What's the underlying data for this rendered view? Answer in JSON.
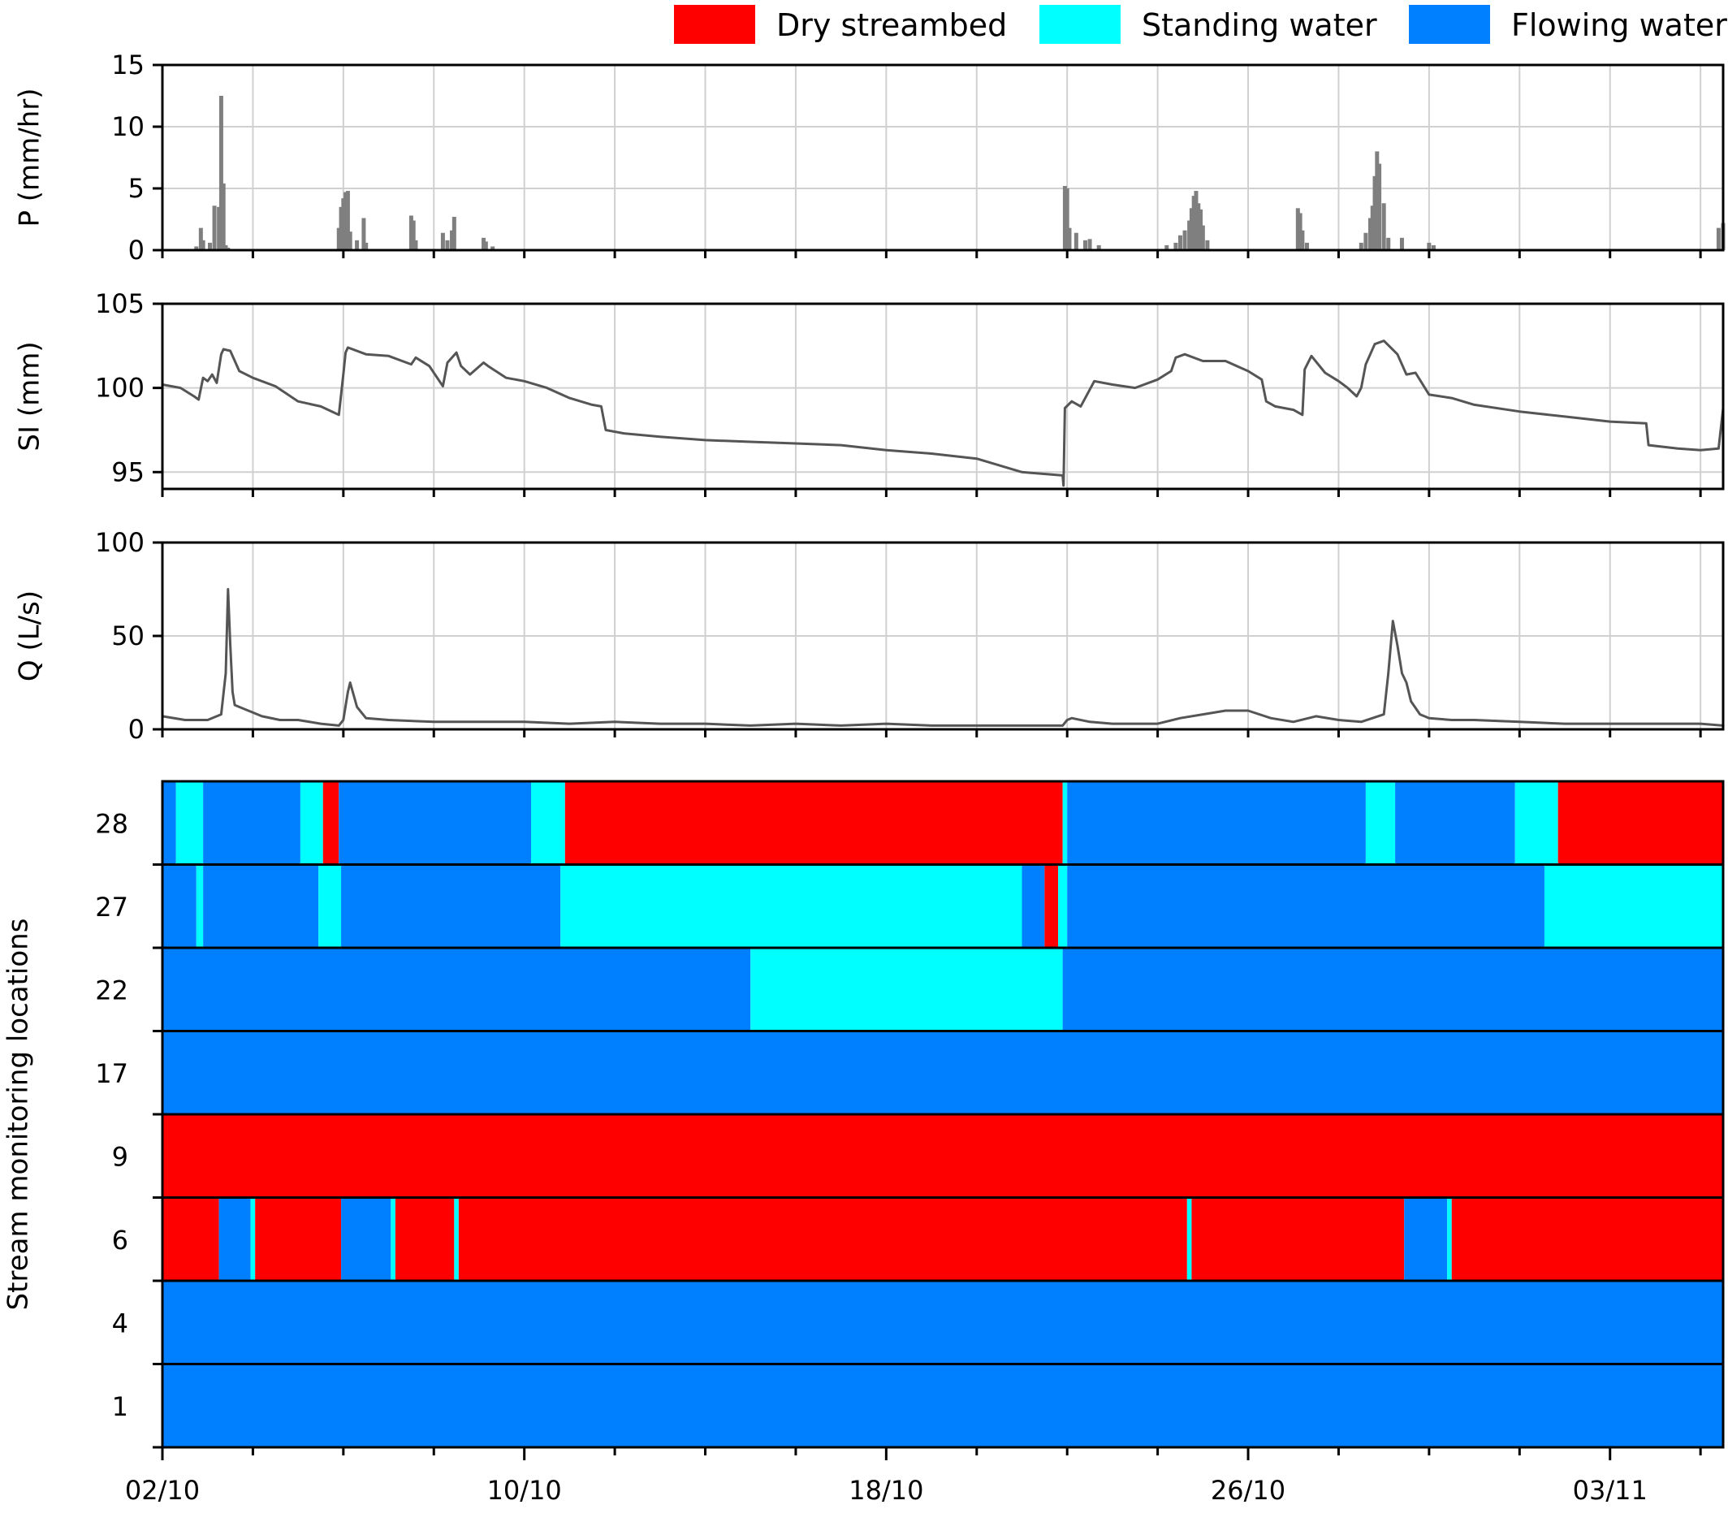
{
  "colors": {
    "dry": "#ff0000",
    "standing": "#00ffff",
    "flowing": "#0080ff",
    "line": "#555555",
    "bar": "#7f7f7f",
    "grid": "#d0d0d0"
  },
  "legend": [
    {
      "label": "Dry streambed",
      "color": "#ff0000"
    },
    {
      "label": "Standing water",
      "color": "#00ffff"
    },
    {
      "label": "Flowing water",
      "color": "#0080ff"
    }
  ],
  "chart_data": [
    {
      "type": "bar",
      "panel": "precipitation",
      "ylabel": "P (mm/hr)",
      "ylim": [
        0,
        15
      ],
      "yticks": [
        "0",
        "5",
        "10",
        "15"
      ],
      "xlim_days": [
        0,
        34.5
      ],
      "grid": true,
      "x": [
        0.75,
        0.85,
        0.9,
        1.05,
        1.15,
        1.25,
        1.3,
        1.35,
        1.4,
        1.45,
        3.9,
        3.95,
        4.0,
        4.05,
        4.1,
        4.15,
        4.3,
        4.45,
        4.5,
        5.5,
        5.55,
        5.6,
        6.2,
        6.3,
        6.4,
        6.45,
        7.1,
        7.15,
        7.3,
        19.95,
        20.0,
        20.05,
        20.2,
        20.4,
        20.5,
        20.7,
        22.2,
        22.4,
        22.5,
        22.6,
        22.7,
        22.75,
        22.8,
        22.85,
        22.9,
        22.95,
        23.0,
        23.1,
        25.1,
        25.15,
        25.2,
        25.3,
        26.5,
        26.6,
        26.7,
        26.75,
        26.8,
        26.85,
        26.9,
        27.0,
        27.1,
        27.4,
        28.0,
        28.1,
        34.4,
        34.5
      ],
      "values": [
        0.3,
        1.8,
        0.8,
        0.6,
        3.6,
        3.5,
        12.5,
        5.4,
        0.4,
        0.2,
        1.8,
        3.5,
        4.2,
        4.7,
        4.8,
        1.5,
        0.8,
        2.6,
        0.6,
        2.8,
        2.4,
        0.8,
        1.4,
        0.8,
        1.6,
        2.7,
        1.0,
        0.7,
        0.3,
        5.2,
        5.0,
        1.8,
        1.4,
        0.8,
        0.9,
        0.4,
        0.4,
        0.6,
        1.2,
        1.6,
        2.4,
        3.4,
        4.4,
        4.8,
        3.8,
        3.3,
        2.0,
        0.8,
        3.4,
        3.0,
        1.6,
        0.6,
        0.6,
        1.4,
        2.6,
        3.6,
        6.0,
        8.0,
        7.0,
        3.8,
        1.0,
        1.0,
        0.6,
        0.4,
        1.8,
        2.2
      ]
    },
    {
      "type": "line",
      "panel": "storage",
      "ylabel": "SI (mm)",
      "ylim": [
        94,
        105
      ],
      "yticks": [
        "95",
        "100",
        "105"
      ],
      "xlim_days": [
        0,
        34.5
      ],
      "grid": true,
      "x": [
        0,
        0.4,
        0.7,
        0.8,
        0.9,
        1.0,
        1.1,
        1.2,
        1.3,
        1.35,
        1.5,
        1.7,
        2.0,
        2.5,
        3.0,
        3.5,
        3.9,
        4.0,
        4.05,
        4.1,
        4.5,
        5.0,
        5.5,
        5.6,
        5.9,
        6.2,
        6.3,
        6.5,
        6.6,
        6.8,
        7.1,
        7.2,
        7.6,
        8.0,
        8.5,
        9.0,
        9.5,
        9.7,
        9.8,
        10.2,
        11.0,
        12.0,
        13.0,
        14.0,
        15.0,
        16.0,
        17.0,
        18.0,
        19.0,
        19.9,
        19.92,
        19.95,
        20.1,
        20.3,
        20.6,
        21.0,
        21.5,
        22.0,
        22.3,
        22.4,
        22.6,
        23.0,
        23.5,
        24.0,
        24.3,
        24.4,
        24.6,
        25.0,
        25.2,
        25.25,
        25.4,
        25.7,
        26.0,
        26.2,
        26.4,
        26.5,
        26.6,
        26.8,
        27.0,
        27.3,
        27.5,
        27.7,
        28.0,
        28.5,
        29.0,
        30.0,
        31.0,
        32.0,
        32.8,
        32.85,
        33.5,
        34.0,
        34.4,
        34.5
      ],
      "values": [
        100.2,
        100.0,
        99.5,
        99.3,
        100.6,
        100.4,
        100.8,
        100.3,
        102.0,
        102.3,
        102.2,
        101.0,
        100.6,
        100.1,
        99.2,
        98.9,
        98.4,
        100.8,
        102.1,
        102.4,
        102.0,
        101.9,
        101.4,
        101.8,
        101.3,
        100.1,
        101.5,
        102.1,
        101.3,
        100.8,
        101.5,
        101.3,
        100.6,
        100.4,
        100.0,
        99.4,
        99.0,
        98.9,
        97.5,
        97.3,
        97.1,
        96.9,
        96.8,
        96.7,
        96.6,
        96.3,
        96.1,
        95.8,
        95.0,
        94.8,
        94.2,
        98.8,
        99.2,
        98.9,
        100.4,
        100.2,
        100.0,
        100.5,
        101.0,
        101.8,
        102.0,
        101.6,
        101.6,
        101.0,
        100.5,
        99.2,
        98.9,
        98.7,
        98.4,
        101.1,
        101.9,
        100.9,
        100.4,
        100.0,
        99.5,
        100.0,
        101.4,
        102.6,
        102.8,
        102.0,
        100.8,
        100.9,
        99.6,
        99.4,
        99.0,
        98.6,
        98.3,
        98.0,
        97.9,
        96.6,
        96.4,
        96.3,
        96.4,
        98.8
      ]
    },
    {
      "type": "line",
      "panel": "discharge",
      "ylabel": "Q (L/s)",
      "ylim": [
        0,
        100
      ],
      "yticks": [
        "0",
        "50",
        "100"
      ],
      "xlim_days": [
        0,
        34.5
      ],
      "grid": true,
      "x": [
        0,
        0.5,
        1.0,
        1.3,
        1.4,
        1.45,
        1.5,
        1.55,
        1.6,
        1.8,
        2.2,
        2.6,
        3.0,
        3.5,
        3.9,
        4.0,
        4.1,
        4.15,
        4.3,
        4.5,
        5.0,
        6.0,
        7.0,
        8.0,
        9.0,
        10.0,
        11.0,
        12.0,
        13.0,
        14.0,
        15.0,
        16.0,
        17.0,
        18.0,
        19.0,
        19.9,
        20.0,
        20.1,
        20.5,
        21.0,
        22.0,
        22.5,
        23.0,
        23.5,
        24.0,
        24.5,
        25.0,
        25.5,
        26.0,
        26.5,
        27.0,
        27.1,
        27.2,
        27.3,
        27.4,
        27.5,
        27.6,
        27.8,
        28.0,
        28.5,
        29.0,
        30.0,
        31.0,
        32.0,
        33.0,
        34.0,
        34.5
      ],
      "values": [
        7,
        5,
        5,
        8,
        30,
        75,
        45,
        20,
        13,
        11,
        7,
        5,
        5,
        3,
        2,
        5,
        20,
        25,
        12,
        6,
        5,
        4,
        4,
        4,
        3,
        4,
        3,
        3,
        2,
        3,
        2,
        3,
        2,
        2,
        2,
        2,
        5,
        6,
        4,
        3,
        3,
        6,
        8,
        10,
        10,
        6,
        4,
        7,
        5,
        4,
        8,
        30,
        58,
        45,
        30,
        25,
        15,
        8,
        6,
        5,
        5,
        4,
        3,
        3,
        3,
        3,
        2
      ]
    },
    {
      "type": "heatmap",
      "panel": "stream-state",
      "ylabel": "Stream monitoring locations",
      "xlim_days": [
        0,
        34.5
      ],
      "xticks": [
        "02/10",
        "10/10",
        "18/10",
        "26/10",
        "03/11"
      ],
      "xtick_days": [
        0,
        8,
        16,
        24,
        32
      ],
      "state_legend": {
        "D": "Dry streambed",
        "S": "Standing water",
        "F": "Flowing water"
      },
      "rows": [
        {
          "label": "28",
          "segments": [
            [
              0,
              0.3,
              "F"
            ],
            [
              0.3,
              0.9,
              "S"
            ],
            [
              0.9,
              3.05,
              "F"
            ],
            [
              3.05,
              3.55,
              "S"
            ],
            [
              3.55,
              3.9,
              "D"
            ],
            [
              3.9,
              8.15,
              "F"
            ],
            [
              8.15,
              8.9,
              "S"
            ],
            [
              8.9,
              19.9,
              "D"
            ],
            [
              19.9,
              20.0,
              "S"
            ],
            [
              20.0,
              26.6,
              "F"
            ],
            [
              26.6,
              27.25,
              "S"
            ],
            [
              27.25,
              29.9,
              "F"
            ],
            [
              29.9,
              30.85,
              "S"
            ],
            [
              30.85,
              34.5,
              "D"
            ]
          ]
        },
        {
          "label": "27",
          "segments": [
            [
              0,
              0.75,
              "F"
            ],
            [
              0.75,
              0.9,
              "S"
            ],
            [
              0.9,
              3.45,
              "F"
            ],
            [
              3.45,
              3.95,
              "S"
            ],
            [
              3.95,
              8.8,
              "F"
            ],
            [
              8.8,
              19.0,
              "S"
            ],
            [
              19.0,
              19.5,
              "F"
            ],
            [
              19.5,
              19.8,
              "D"
            ],
            [
              19.8,
              20.0,
              "S"
            ],
            [
              20.0,
              30.55,
              "F"
            ],
            [
              30.55,
              34.5,
              "S"
            ]
          ]
        },
        {
          "label": "22",
          "segments": [
            [
              0,
              13.0,
              "F"
            ],
            [
              13.0,
              19.9,
              "S"
            ],
            [
              19.9,
              34.5,
              "F"
            ]
          ]
        },
        {
          "label": "17",
          "segments": [
            [
              0,
              34.5,
              "F"
            ]
          ]
        },
        {
          "label": "9",
          "segments": [
            [
              0,
              34.5,
              "D"
            ]
          ]
        },
        {
          "label": "6",
          "segments": [
            [
              0,
              1.25,
              "D"
            ],
            [
              1.25,
              1.95,
              "F"
            ],
            [
              1.95,
              2.05,
              "S"
            ],
            [
              2.05,
              3.95,
              "D"
            ],
            [
              3.95,
              5.05,
              "F"
            ],
            [
              5.05,
              5.15,
              "S"
            ],
            [
              5.15,
              6.45,
              "D"
            ],
            [
              6.45,
              6.55,
              "S"
            ],
            [
              6.55,
              22.65,
              "D"
            ],
            [
              22.65,
              22.75,
              "S"
            ],
            [
              22.75,
              27.45,
              "D"
            ],
            [
              27.45,
              28.4,
              "F"
            ],
            [
              28.4,
              28.5,
              "S"
            ],
            [
              28.5,
              34.5,
              "D"
            ]
          ]
        },
        {
          "label": "4",
          "segments": [
            [
              0,
              34.5,
              "F"
            ]
          ]
        },
        {
          "label": "1",
          "segments": [
            [
              0,
              34.5,
              "F"
            ]
          ]
        }
      ]
    }
  ]
}
